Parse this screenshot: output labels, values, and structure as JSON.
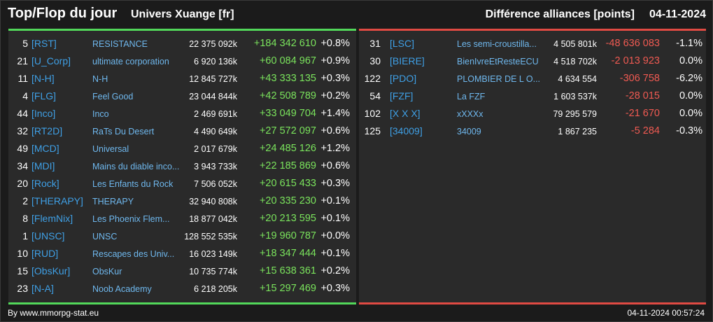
{
  "header": {
    "title": "Top/Flop du jour",
    "subtitle": "Univers Xuange [fr]",
    "metric": "Différence alliances [points]",
    "date": "04-11-2024"
  },
  "colors": {
    "background": "#1b1b1b",
    "panel": "#2a2a2a",
    "top_accent": "#52d85a",
    "flop_accent": "#e04a43",
    "tag_blue": "#3fa0e6",
    "positive_green": "#7ae35c",
    "negative_red": "#ef5a52"
  },
  "top": [
    {
      "rank": "5",
      "tag": "[RST]",
      "name": "RESISTANCE",
      "points": "22 375 092k",
      "diff": "+184 342 610",
      "pct": "+0.8%"
    },
    {
      "rank": "21",
      "tag": "[U_Corp]",
      "name": "ultimate corporation",
      "points": "6 920 136k",
      "diff": "+60 084 967",
      "pct": "+0.9%"
    },
    {
      "rank": "11",
      "tag": "[N-H]",
      "name": "N-H",
      "points": "12 845 727k",
      "diff": "+43 333 135",
      "pct": "+0.3%"
    },
    {
      "rank": "4",
      "tag": "[FLG]",
      "name": "Feel Good",
      "points": "23 044 844k",
      "diff": "+42 508 789",
      "pct": "+0.2%"
    },
    {
      "rank": "44",
      "tag": "[Inco]",
      "name": "Inco",
      "points": "2 469 691k",
      "diff": "+33 049 704",
      "pct": "+1.4%"
    },
    {
      "rank": "32",
      "tag": "[RT2D]",
      "name": "RaTs Du Desert",
      "points": "4 490 649k",
      "diff": "+27 572 097",
      "pct": "+0.6%"
    },
    {
      "rank": "49",
      "tag": "[MCD]",
      "name": "Universal",
      "points": "2 017 679k",
      "diff": "+24 485 126",
      "pct": "+1.2%"
    },
    {
      "rank": "34",
      "tag": "[MDI]",
      "name": "Mains du diable inco...",
      "points": "3 943 733k",
      "diff": "+22 185 869",
      "pct": "+0.6%"
    },
    {
      "rank": "20",
      "tag": "[Rock]",
      "name": "Les Enfants du Rock",
      "points": "7 506 052k",
      "diff": "+20 615 433",
      "pct": "+0.3%"
    },
    {
      "rank": "2",
      "tag": "[THERAPY]",
      "name": "THERAPY",
      "points": "32 940 808k",
      "diff": "+20 335 230",
      "pct": "+0.1%"
    },
    {
      "rank": "8",
      "tag": "[FlemNix]",
      "name": "Les Phoenix Flem...",
      "points": "18 877 042k",
      "diff": "+20 213 595",
      "pct": "+0.1%"
    },
    {
      "rank": "1",
      "tag": "[UNSC]",
      "name": "UNSC",
      "points": "128 552 535k",
      "diff": "+19 960 787",
      "pct": "+0.0%"
    },
    {
      "rank": "10",
      "tag": "[RUD]",
      "name": "Rescapes des Univ...",
      "points": "16 023 149k",
      "diff": "+18 347 444",
      "pct": "+0.1%"
    },
    {
      "rank": "15",
      "tag": "[ObsKur]",
      "name": "ObsKur",
      "points": "10 735 774k",
      "diff": "+15 638 361",
      "pct": "+0.2%"
    },
    {
      "rank": "23",
      "tag": "[N-A]",
      "name": "Noob Academy",
      "points": "6 218 205k",
      "diff": "+15 297 469",
      "pct": "+0.3%"
    }
  ],
  "flop": [
    {
      "rank": "31",
      "tag": "[LSC]",
      "name": "Les semi-croustilla...",
      "points": "4 505 801k",
      "diff": "-48 636 083",
      "pct": "-1.1%"
    },
    {
      "rank": "30",
      "tag": "[BIERE]",
      "name": "BienIvreEtResteECU",
      "points": "4 518 702k",
      "diff": "-2 013 923",
      "pct": "0.0%"
    },
    {
      "rank": "122",
      "tag": "[PDO]",
      "name": "PLOMBIER DE L O...",
      "points": "4 634 554",
      "diff": "-306 758",
      "pct": "-6.2%"
    },
    {
      "rank": "54",
      "tag": "[FZF]",
      "name": "La FZF",
      "points": "1 603 537k",
      "diff": "-28 015",
      "pct": "0.0%"
    },
    {
      "rank": "102",
      "tag": "[X X X]",
      "name": "xXXXx",
      "points": "79 295 579",
      "diff": "-21 670",
      "pct": "0.0%"
    },
    {
      "rank": "125",
      "tag": "[34009]",
      "name": "34009",
      "points": "1 867 235",
      "diff": "-5 284",
      "pct": "-0.3%"
    }
  ],
  "footer": {
    "credit": "By www.mmorpg-stat.eu",
    "timestamp": "04-11-2024 00:57:24"
  }
}
